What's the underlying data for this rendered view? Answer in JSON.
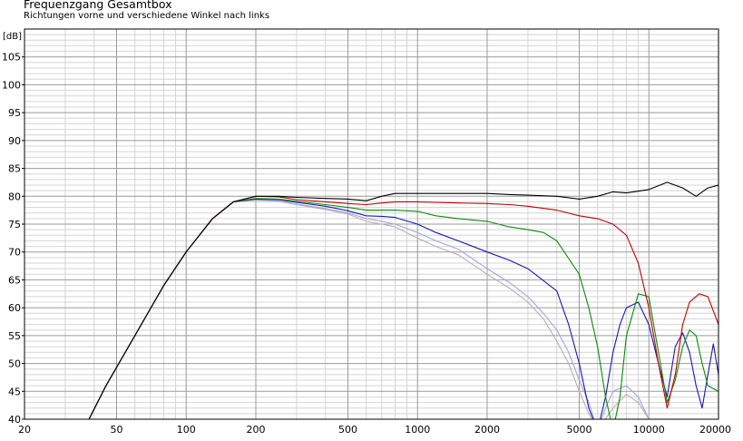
{
  "chart_data": {
    "type": "line",
    "title": "Frequenzgang Gesamtbox",
    "subtitle": "Richtungen vorne und verschiedene Winkel nach links",
    "ylabel": "[dB]",
    "xlabel": "",
    "x_scale": "log",
    "xlim": [
      20,
      20000
    ],
    "ylim": [
      40,
      110
    ],
    "grid": true,
    "x_ticks": [
      20,
      50,
      100,
      200,
      500,
      1000,
      2000,
      5000,
      10000,
      20000
    ],
    "x_tick_labels": [
      "20",
      "50",
      "100",
      "200",
      "500",
      "1000",
      "2000",
      "5000",
      "10000",
      "20000"
    ],
    "y_ticks": [
      40,
      45,
      50,
      55,
      60,
      65,
      70,
      75,
      80,
      85,
      90,
      95,
      100,
      105
    ],
    "y_tick_labels": [
      "40",
      "45",
      "50",
      "55",
      "60",
      "65",
      "70",
      "75",
      "80",
      "85",
      "90",
      "95",
      "100",
      "105"
    ],
    "series": [
      {
        "color": "#000000",
        "x": [
          20,
          38,
          45,
          60,
          80,
          100,
          130,
          160,
          200,
          250,
          300,
          400,
          500,
          600,
          700,
          800,
          1000,
          1200,
          1500,
          2000,
          2500,
          3000,
          4000,
          5000,
          6000,
          7000,
          8000,
          10000,
          12000,
          14000,
          16000,
          18000,
          20000
        ],
        "y": [
          40,
          40,
          46,
          55,
          64,
          70,
          76,
          79,
          80,
          80,
          79.8,
          79.6,
          79.5,
          79.2,
          80,
          80.5,
          80.5,
          80.5,
          80.5,
          80.5,
          80.3,
          80.2,
          80,
          79.5,
          80,
          80.8,
          80.6,
          81.2,
          82.5,
          81.5,
          80,
          81.5,
          82
        ]
      },
      {
        "color": "#c00000",
        "x": [
          20,
          38,
          45,
          60,
          80,
          100,
          130,
          160,
          200,
          250,
          300,
          400,
          500,
          600,
          700,
          800,
          1000,
          1200,
          1500,
          2000,
          2500,
          3000,
          4000,
          5000,
          6000,
          7000,
          8000,
          9000,
          10000,
          11000,
          12000,
          13000,
          14000,
          15000,
          16500,
          18000,
          20000
        ],
        "y": [
          40,
          40,
          46,
          55,
          64,
          70,
          76,
          79,
          80,
          79.9,
          79.4,
          79,
          78.7,
          78.5,
          78.8,
          79,
          79,
          78.9,
          78.8,
          78.7,
          78.5,
          78.2,
          77.5,
          76.5,
          76,
          75,
          73,
          68,
          60,
          50,
          42,
          48,
          57,
          61,
          62.5,
          62,
          57
        ]
      },
      {
        "color": "#0a8a0a",
        "x": [
          20,
          38,
          45,
          60,
          80,
          100,
          130,
          160,
          200,
          250,
          300,
          400,
          500,
          600,
          700,
          800,
          1000,
          1200,
          1500,
          2000,
          2500,
          3000,
          3500,
          4000,
          5000,
          5500,
          6000,
          6500,
          7000,
          7500,
          8000,
          9000,
          10000,
          11000,
          12000,
          13000,
          14000,
          15000,
          16000,
          17000,
          18000,
          20000
        ],
        "y": [
          40,
          40,
          46,
          55,
          64,
          70,
          76,
          79,
          79.6,
          79.5,
          79.1,
          78.5,
          78,
          77.5,
          77.5,
          77.5,
          77.3,
          76.5,
          76,
          75.5,
          74.5,
          74,
          73.5,
          72,
          66,
          60,
          53,
          44,
          38,
          44,
          55,
          62.5,
          62,
          52,
          43,
          47,
          53,
          56,
          55,
          50,
          46,
          45
        ]
      },
      {
        "color": "#1818b0",
        "x": [
          20,
          38,
          45,
          60,
          80,
          100,
          130,
          160,
          200,
          250,
          300,
          400,
          500,
          600,
          700,
          800,
          1000,
          1200,
          1500,
          2000,
          2500,
          3000,
          4000,
          4500,
          5000,
          5500,
          6000,
          6500,
          7000,
          7500,
          8000,
          9000,
          10000,
          11000,
          12000,
          13000,
          14000,
          15000,
          16000,
          17000,
          18000,
          19000,
          20000
        ],
        "y": [
          40,
          40,
          46,
          55,
          64,
          70,
          76,
          79,
          79.5,
          79.4,
          78.9,
          78.2,
          77.4,
          76.5,
          76.4,
          76.2,
          75,
          73.5,
          72,
          70,
          68.5,
          67,
          63,
          57,
          50,
          42,
          38,
          44,
          52,
          57,
          60,
          61,
          57,
          50,
          44,
          53,
          55.5,
          52,
          46,
          42,
          48,
          53.5,
          48
        ]
      },
      {
        "color": "#9aa8e0",
        "x": [
          20,
          38,
          45,
          60,
          80,
          100,
          130,
          160,
          200,
          250,
          300,
          400,
          500,
          600,
          700,
          800,
          1000,
          1200,
          1500,
          2000,
          2500,
          3000,
          3500,
          4000,
          4500,
          5000,
          5500,
          6000,
          6500,
          7000,
          8000,
          9000,
          10000
        ],
        "y": [
          40,
          40,
          46,
          55,
          64,
          70,
          76,
          79,
          79.4,
          79.2,
          78.6,
          77.8,
          77,
          76,
          75.5,
          75,
          73.5,
          72,
          70.5,
          67,
          64.5,
          62,
          59,
          56,
          52,
          47,
          43,
          38,
          42,
          45,
          46,
          44,
          40
        ]
      },
      {
        "color": "#c0aab8",
        "x": [
          20,
          38,
          45,
          60,
          80,
          100,
          130,
          160,
          200,
          250,
          300,
          400,
          500,
          600,
          700,
          800,
          1000,
          1200,
          1500,
          2000,
          2500,
          3000,
          3500,
          4000,
          4500,
          5000,
          5500,
          6000,
          7000,
          8000,
          9000,
          10000
        ],
        "y": [
          40,
          40,
          46,
          55,
          64,
          70,
          76,
          79,
          79.3,
          79.1,
          78.5,
          77.6,
          76.8,
          75.5,
          75,
          74.5,
          72.5,
          71,
          69.5,
          66,
          63.5,
          61,
          58,
          54,
          50,
          45,
          41,
          38,
          42,
          44.5,
          43,
          40
        ]
      }
    ]
  }
}
